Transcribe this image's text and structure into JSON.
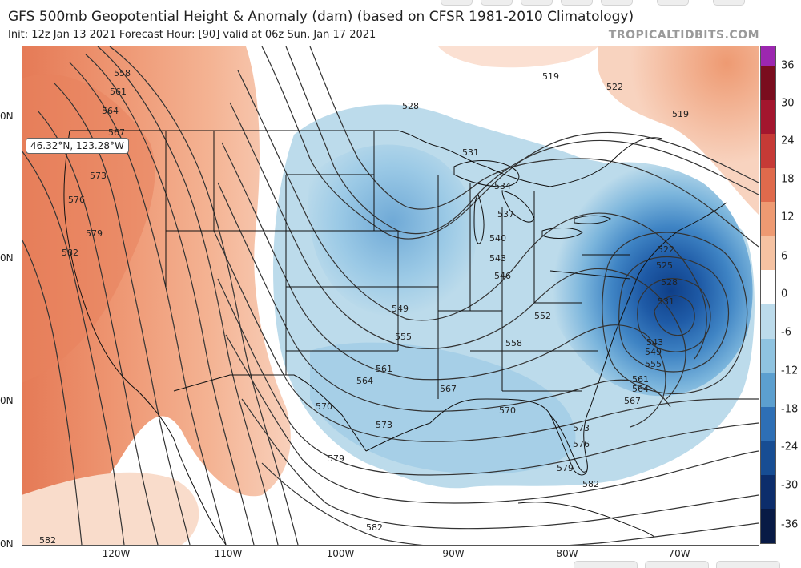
{
  "header": {
    "title": "GFS 500mb Geopotential Height & Anomaly (dam) (based on CFSR 1981-2010 Climatology)",
    "subtitle": "Init: 12z Jan 13 2021   Forecast Hour: [90]   valid at 06z Sun, Jan 17 2021",
    "credit": "TROPICALTIDBITS.COM"
  },
  "tooltip": {
    "coords": "46.32°N, 123.28°W"
  },
  "axes": {
    "lat_labels": [
      "0N",
      "0N",
      "0N",
      "0N"
    ],
    "lon_labels": [
      "120W",
      "110W",
      "100W",
      "90W",
      "80W",
      "70W"
    ]
  },
  "colorbar": {
    "labels": [
      "36",
      "30",
      "24",
      "18",
      "12",
      "6",
      "0",
      "-6",
      "-12",
      "-18",
      "-24",
      "-30",
      "-36"
    ],
    "colors": [
      "#7a0d1e",
      "#a3162e",
      "#c63a36",
      "#df6a4c",
      "#ee9a72",
      "#f5c2a2",
      "#ffffff",
      "#bcdbeb",
      "#8fc3e0",
      "#5c9fcf",
      "#2e6fb5",
      "#174d93",
      "#0c2d6b",
      "#081a45"
    ],
    "top_color": "#9c27b0"
  },
  "contours": {
    "labels": [
      "558",
      "561",
      "564",
      "567",
      "573",
      "576",
      "579",
      "582",
      "528",
      "531",
      "534",
      "537",
      "540",
      "543",
      "546",
      "549",
      "552",
      "555",
      "558",
      "561",
      "564",
      "567",
      "570",
      "570",
      "573",
      "579",
      "582",
      "519",
      "522",
      "519",
      "522",
      "525",
      "528",
      "531",
      "543",
      "549",
      "555",
      "561",
      "564",
      "567",
      "573",
      "576",
      "579",
      "582",
      "582"
    ]
  },
  "colors": {
    "warm_anomaly": "#f2a888",
    "cold_anomaly": "#8cc0e0",
    "deep_cold": "#2a68b0",
    "contour": "#333333"
  }
}
